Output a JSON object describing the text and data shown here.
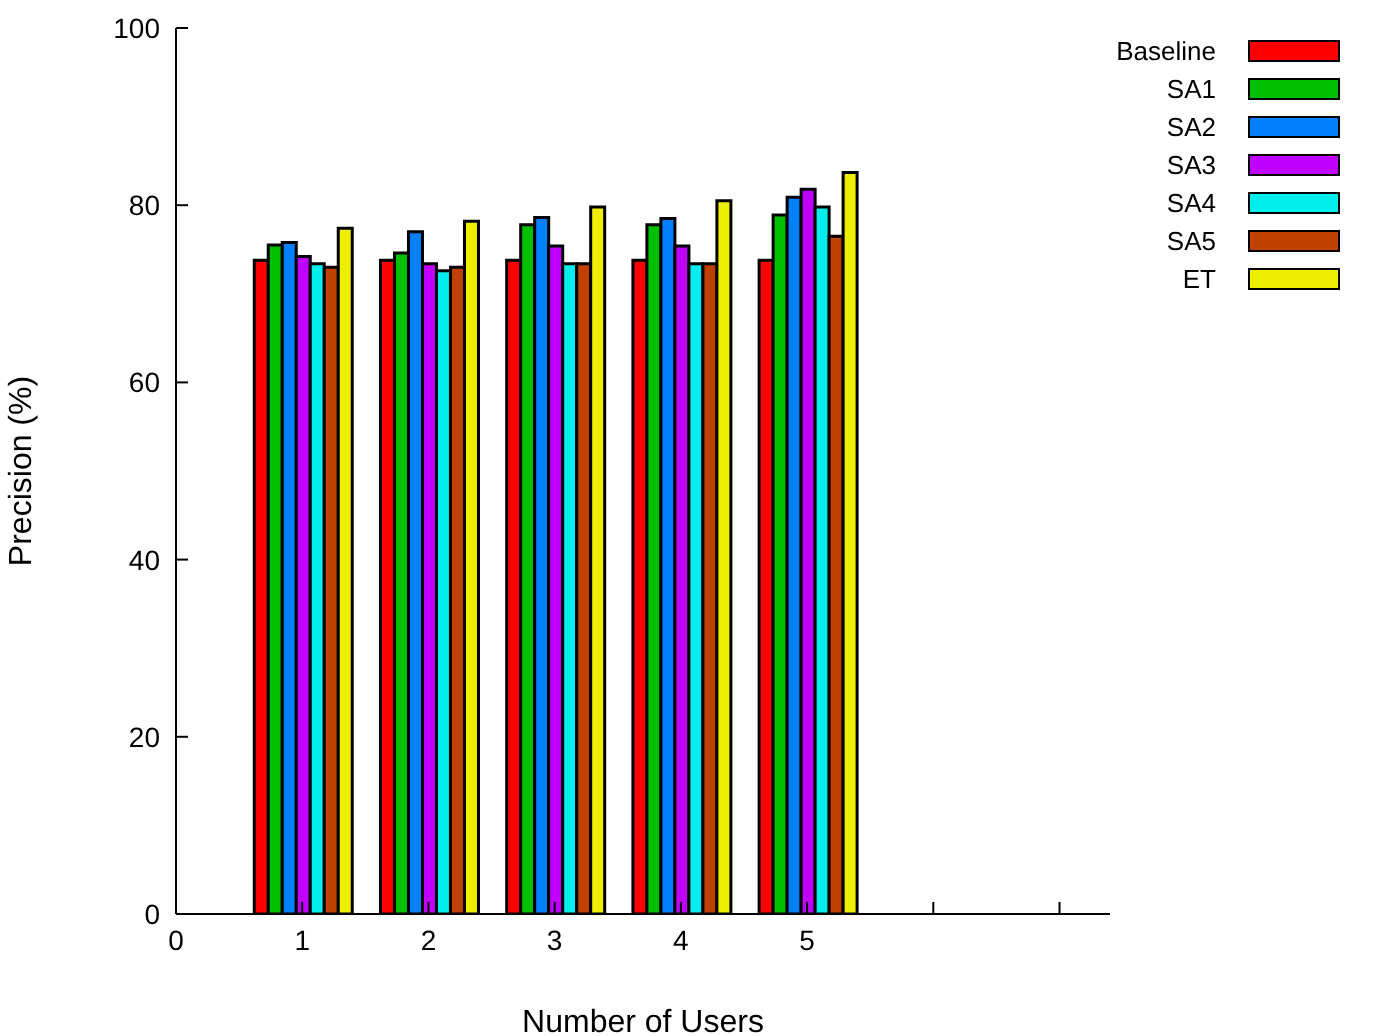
{
  "chart_data": {
    "type": "bar",
    "xlabel": "Number of Users",
    "ylabel": "Precision  (%)",
    "x": [
      1,
      2,
      3,
      4,
      5
    ],
    "xlim": [
      0,
      7.4
    ],
    "xticks": [
      0,
      1,
      2,
      3,
      4,
      5,
      {
        "value": 6,
        "label": null
      },
      {
        "value": 7,
        "label": null
      }
    ],
    "ylim": [
      0,
      100
    ],
    "yticks": [
      0,
      20,
      40,
      60,
      80,
      100
    ],
    "grid": false,
    "legend": "top right",
    "series": [
      {
        "name": "Baseline",
        "color": "#ff0000",
        "values": [
          73.8,
          73.8,
          73.8,
          73.8,
          73.8
        ]
      },
      {
        "name": "SA1",
        "color": "#00c000",
        "values": [
          75.5,
          74.6,
          77.8,
          77.8,
          78.9
        ]
      },
      {
        "name": "SA2",
        "color": "#0080ff",
        "values": [
          75.8,
          77.0,
          78.6,
          78.5,
          80.9
        ]
      },
      {
        "name": "SA3",
        "color": "#c000ff",
        "values": [
          74.2,
          73.4,
          75.4,
          75.4,
          81.8
        ]
      },
      {
        "name": "SA4",
        "color": "#00eeee",
        "values": [
          73.4,
          72.6,
          73.4,
          73.4,
          79.8
        ]
      },
      {
        "name": "SA5",
        "color": "#c04000",
        "values": [
          73.0,
          73.0,
          73.4,
          73.4,
          76.5
        ]
      },
      {
        "name": "ET",
        "color": "#eeee00",
        "values": [
          77.4,
          78.2,
          79.8,
          80.5,
          83.7
        ]
      }
    ]
  }
}
